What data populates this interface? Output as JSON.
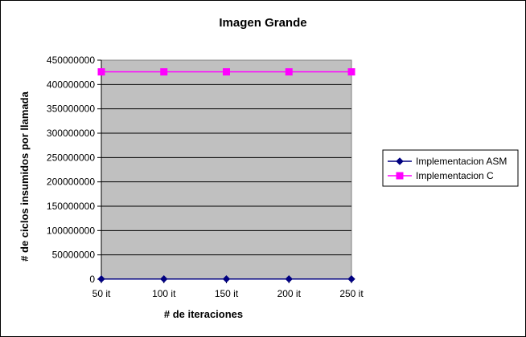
{
  "chart_data": {
    "type": "line",
    "title": "Imagen Grande",
    "xlabel": "# de iteraciones",
    "ylabel": "# de ciclos insumidos por llamada",
    "categories": [
      "50 it",
      "100 it",
      "150 it",
      "200 it",
      "250 it"
    ],
    "ylim": [
      0,
      450000000
    ],
    "yticks": [
      "0",
      "50000000",
      "100000000",
      "150000000",
      "200000000",
      "250000000",
      "300000000",
      "350000000",
      "400000000",
      "450000000"
    ],
    "grid": true,
    "legend": "right",
    "plot_background": "#c0c0c0",
    "series": [
      {
        "name": "Implementacion ASM",
        "values": [
          500000,
          500000,
          500000,
          500000,
          500000
        ],
        "color": "#000080",
        "marker": "diamond"
      },
      {
        "name": "Implementacion C",
        "values": [
          426000000,
          426000000,
          426000000,
          426000000,
          426000000
        ],
        "color": "#ff00ff",
        "marker": "square"
      }
    ]
  }
}
